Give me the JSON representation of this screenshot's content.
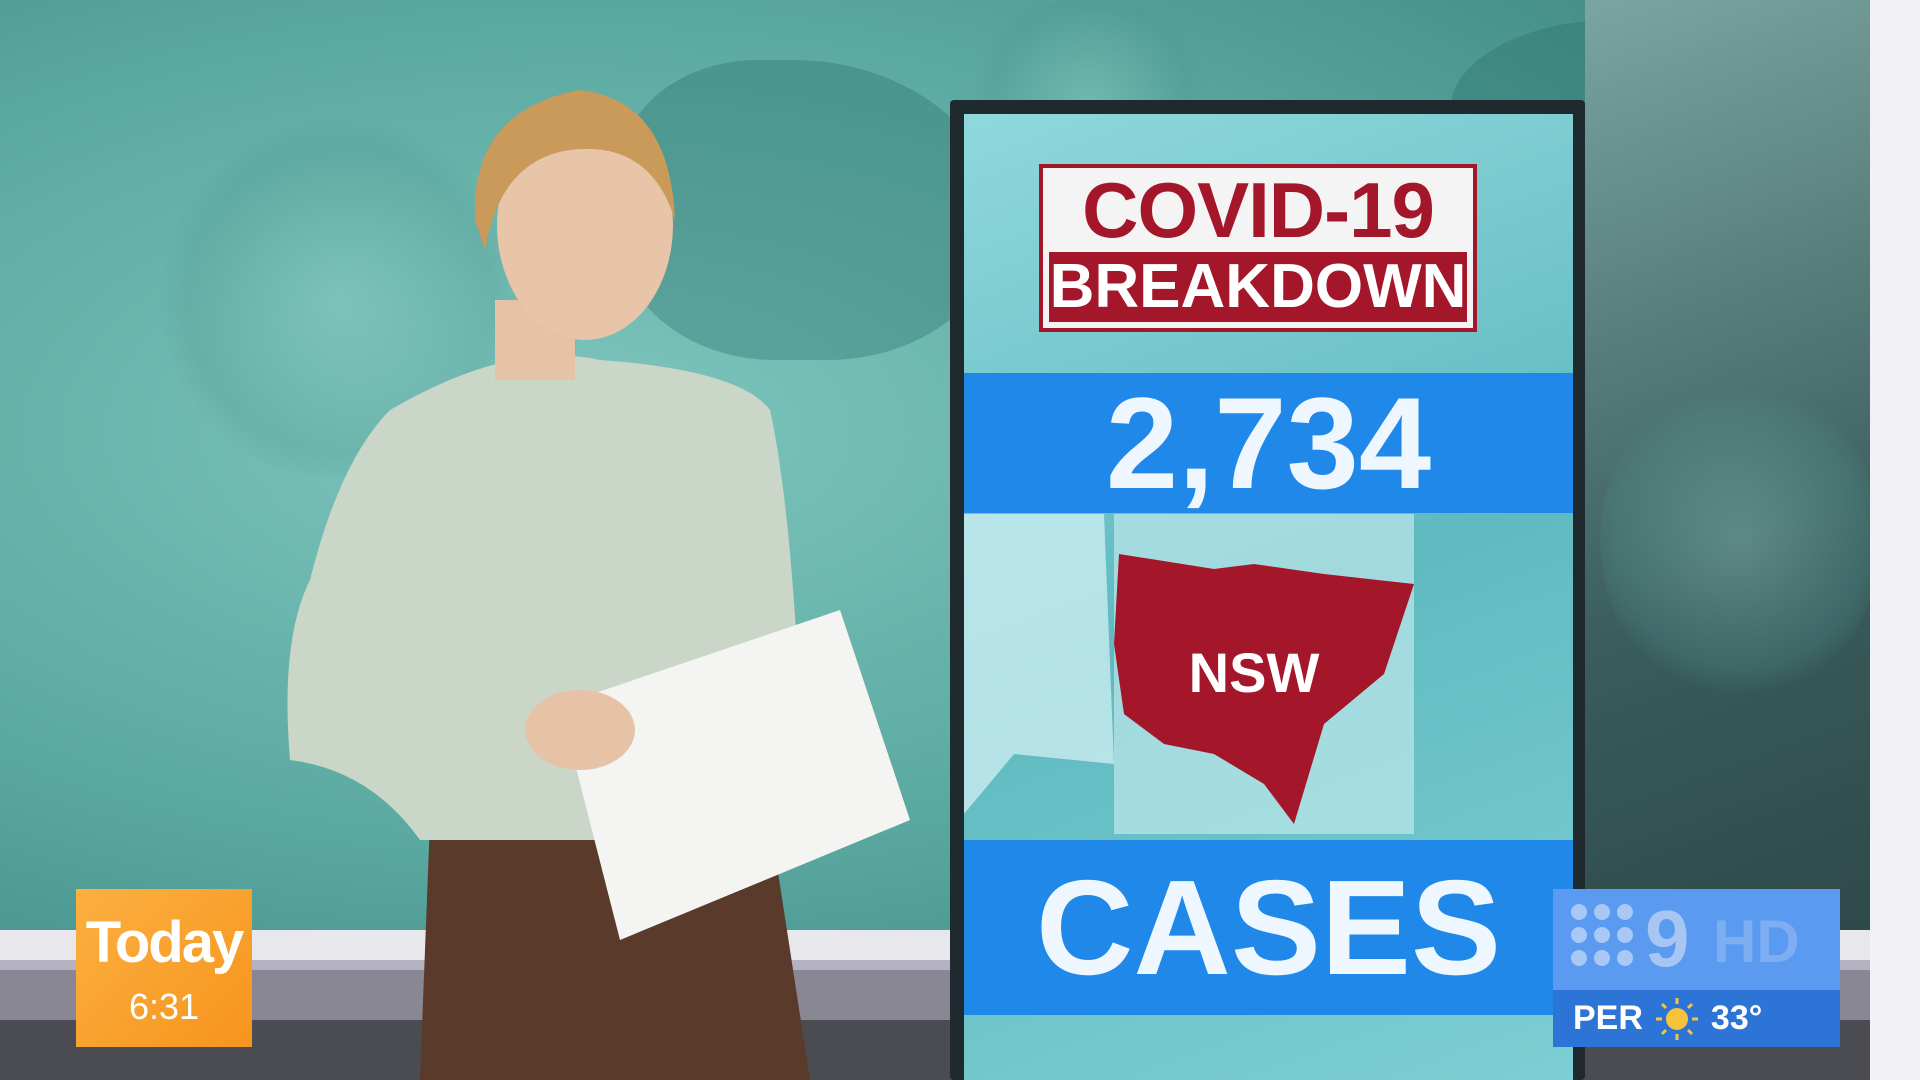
{
  "screen": {
    "title_line1": "COVID-19",
    "title_line2": "BREAKDOWN",
    "count": "2,734",
    "state": "NSW",
    "label": "CASES"
  },
  "logo_today": {
    "text": "Today",
    "time": "6:31"
  },
  "channel_bug": {
    "logo": "9HD",
    "city": "PER",
    "weather_icon": "sun-icon",
    "temperature": "33°"
  },
  "colors": {
    "covid_red": "#a4162a",
    "band_blue": "#1f88e8",
    "today_orange": "#f7941d",
    "nine_blue": "#5a9af0"
  }
}
